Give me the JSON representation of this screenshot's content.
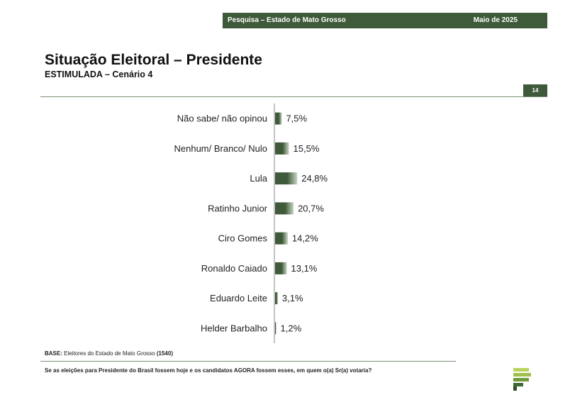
{
  "header": {
    "survey": "Pesquisa – Estado de Mato Grosso",
    "date": "Maio de 2025"
  },
  "page_number": "14",
  "chart_data": {
    "type": "bar",
    "orientation": "horizontal",
    "title": "Situação Eleitoral – Presidente",
    "subtitle": "ESTIMULADA – Cenário 4",
    "categories": [
      "Não sabe/ não opinou",
      "Nenhum/ Branco/ Nulo",
      "Lula",
      "Ratinho Junior",
      "Ciro Gomes",
      "Ronaldo Caiado",
      "Eduardo Leite",
      "Helder Barbalho"
    ],
    "values": [
      7.5,
      15.5,
      24.8,
      20.7,
      14.2,
      13.1,
      3.1,
      1.2
    ],
    "value_labels": [
      "7,5%",
      "15,5%",
      "24,8%",
      "20,7%",
      "14,2%",
      "13,1%",
      "3,1%",
      "1,2%"
    ],
    "unit": "%",
    "grid": false,
    "bar_color_dark": "#3f5a3a",
    "bar_color_light": "#c8d6c2"
  },
  "footer": {
    "base_label": "BASE:",
    "base_text": " Eleitores do Estado de Mato Grosso ",
    "base_n": "(1540)",
    "question": "Se as eleições para Presidente do Brasil fossem hoje e os candidatos AGORA fossem esses, em quem o(a) Sr(a) votaria?"
  }
}
